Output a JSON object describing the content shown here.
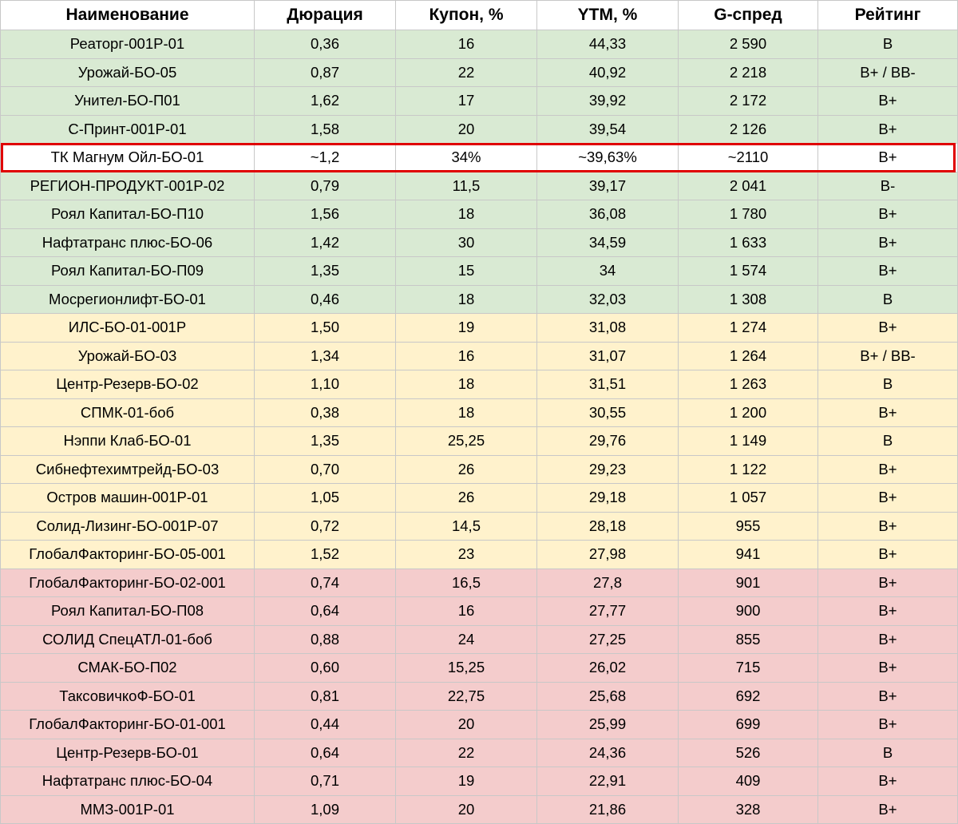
{
  "table": {
    "headers": [
      "Наименование",
      "Дюрация",
      "Купон, %",
      "YTM, %",
      "G-спред",
      "Рейтинг"
    ],
    "rows": [
      {
        "group": "green",
        "cells": [
          "Реаторг-001Р-01",
          "0,36",
          "16",
          "44,33",
          "2 590",
          "B"
        ]
      },
      {
        "group": "green",
        "cells": [
          "Урожай-БО-05",
          "0,87",
          "22",
          "40,92",
          "2 218",
          "B+ / BB-"
        ]
      },
      {
        "group": "green",
        "cells": [
          "Унител-БО-П01",
          "1,62",
          "17",
          "39,92",
          "2 172",
          "B+"
        ]
      },
      {
        "group": "green",
        "cells": [
          "С-Принт-001Р-01",
          "1,58",
          "20",
          "39,54",
          "2 126",
          "B+"
        ]
      },
      {
        "group": "highlight",
        "cells": [
          "ТК Магнум Ойл-БО-01",
          "~1,2",
          "34%",
          "~39,63%",
          "~2110",
          "B+"
        ]
      },
      {
        "group": "green",
        "cells": [
          "РЕГИОН-ПРОДУКТ-001Р-02",
          "0,79",
          "11,5",
          "39,17",
          "2 041",
          "B-"
        ]
      },
      {
        "group": "green",
        "cells": [
          "Роял Капитал-БО-П10",
          "1,56",
          "18",
          "36,08",
          "1 780",
          "B+"
        ]
      },
      {
        "group": "green",
        "cells": [
          "Нафтатранс плюс-БО-06",
          "1,42",
          "30",
          "34,59",
          "1 633",
          "B+"
        ]
      },
      {
        "group": "green",
        "cells": [
          "Роял Капитал-БО-П09",
          "1,35",
          "15",
          "34",
          "1 574",
          "B+"
        ]
      },
      {
        "group": "green",
        "cells": [
          "Мосрегионлифт-БО-01",
          "0,46",
          "18",
          "32,03",
          "1 308",
          "B"
        ]
      },
      {
        "group": "yellow",
        "cells": [
          "ИЛС-БО-01-001Р",
          "1,50",
          "19",
          "31,08",
          "1 274",
          "B+"
        ]
      },
      {
        "group": "yellow",
        "cells": [
          "Урожай-БО-03",
          "1,34",
          "16",
          "31,07",
          "1 264",
          "B+ / BB-"
        ]
      },
      {
        "group": "yellow",
        "cells": [
          "Центр-Резерв-БО-02",
          "1,10",
          "18",
          "31,51",
          "1 263",
          "B"
        ]
      },
      {
        "group": "yellow",
        "cells": [
          "СПМК-01-боб",
          "0,38",
          "18",
          "30,55",
          "1 200",
          "B+"
        ]
      },
      {
        "group": "yellow",
        "cells": [
          "Нэппи Клаб-БО-01",
          "1,35",
          "25,25",
          "29,76",
          "1 149",
          "B"
        ]
      },
      {
        "group": "yellow",
        "cells": [
          "Сибнефтехимтрейд-БО-03",
          "0,70",
          "26",
          "29,23",
          "1 122",
          "B+"
        ]
      },
      {
        "group": "yellow",
        "cells": [
          "Остров машин-001Р-01",
          "1,05",
          "26",
          "29,18",
          "1 057",
          "B+"
        ]
      },
      {
        "group": "yellow",
        "cells": [
          "Солид-Лизинг-БО-001Р-07",
          "0,72",
          "14,5",
          "28,18",
          "955",
          "B+"
        ]
      },
      {
        "group": "yellow",
        "cells": [
          "ГлобалФакторинг-БО-05-001",
          "1,52",
          "23",
          "27,98",
          "941",
          "B+"
        ]
      },
      {
        "group": "red",
        "cells": [
          "ГлобалФакторинг-БО-02-001",
          "0,74",
          "16,5",
          "27,8",
          "901",
          "B+"
        ]
      },
      {
        "group": "red",
        "cells": [
          "Роял Капитал-БО-П08",
          "0,64",
          "16",
          "27,77",
          "900",
          "B+"
        ]
      },
      {
        "group": "red",
        "cells": [
          "СОЛИД СпецАТЛ-01-боб",
          "0,88",
          "24",
          "27,25",
          "855",
          "B+"
        ]
      },
      {
        "group": "red",
        "cells": [
          "СМАК-БО-П02",
          "0,60",
          "15,25",
          "26,02",
          "715",
          "B+"
        ]
      },
      {
        "group": "red",
        "cells": [
          "ТаксовичкоФ-БО-01",
          "0,81",
          "22,75",
          "25,68",
          "692",
          "B+"
        ]
      },
      {
        "group": "red",
        "cells": [
          "ГлобалФакторинг-БО-01-001",
          "0,44",
          "20",
          "25,99",
          "699",
          "B+"
        ]
      },
      {
        "group": "red",
        "cells": [
          "Центр-Резерв-БО-01",
          "0,64",
          "22",
          "24,36",
          "526",
          "B"
        ]
      },
      {
        "group": "red",
        "cells": [
          "Нафтатранс плюс-БО-04",
          "0,71",
          "19",
          "22,91",
          "409",
          "B+"
        ]
      },
      {
        "group": "red",
        "cells": [
          "ММЗ-001Р-01",
          "1,09",
          "20",
          "21,86",
          "328",
          "B+"
        ]
      }
    ]
  },
  "colors": {
    "green": "#d9ead3",
    "yellow": "#fff2cc",
    "red": "#f4cccc",
    "highlight_border": "#e00000",
    "grid": "#c8c8c8"
  }
}
